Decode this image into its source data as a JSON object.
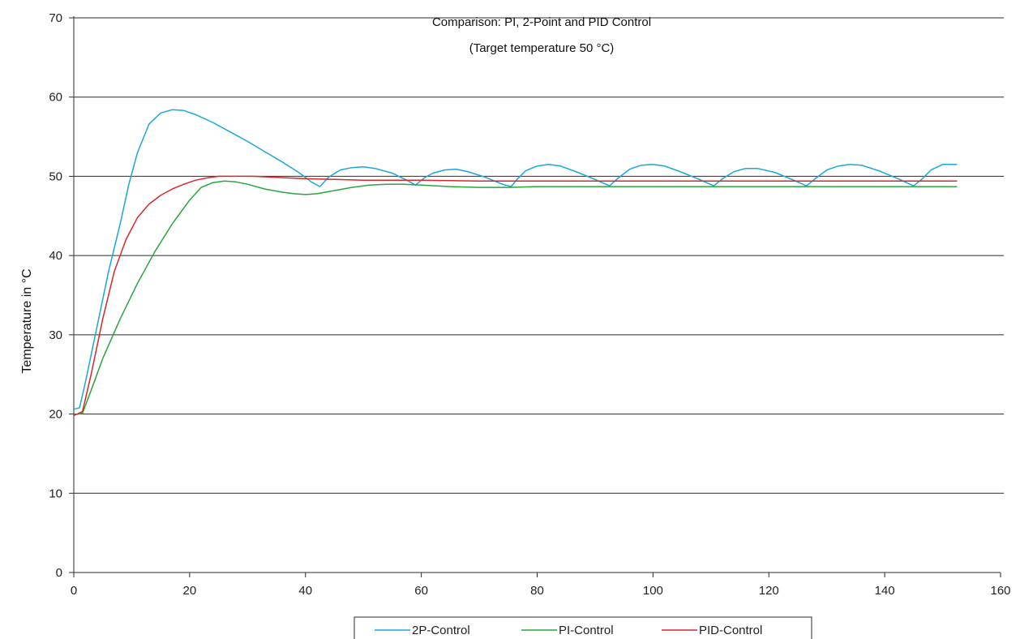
{
  "chart_data": {
    "type": "line",
    "title": "Comparison: PI, 2-Point and PID Control",
    "subtitle": "(Target temperature 50 °C)",
    "xlabel": "",
    "ylabel": "Temperature in °C",
    "xlim": [
      0,
      160
    ],
    "ylim": [
      0,
      70
    ],
    "xticks": [
      0,
      20,
      40,
      60,
      80,
      100,
      120,
      140,
      160
    ],
    "yticks": [
      0,
      10,
      20,
      30,
      40,
      50,
      60,
      70
    ],
    "grid": "horizontal",
    "legend_position": "bottom",
    "series": [
      {
        "name": "2P-Control",
        "color": "#1aa7d8",
        "points": [
          [
            0,
            20.6
          ],
          [
            1,
            20.8
          ],
          [
            2,
            24
          ],
          [
            4,
            31
          ],
          [
            6,
            38
          ],
          [
            8,
            44
          ],
          [
            9.5,
            49
          ],
          [
            11,
            53
          ],
          [
            13,
            56.6
          ],
          [
            15,
            58
          ],
          [
            17,
            58.4
          ],
          [
            19,
            58.3
          ],
          [
            21,
            57.8
          ],
          [
            24,
            56.8
          ],
          [
            27,
            55.6
          ],
          [
            30,
            54.4
          ],
          [
            33,
            53.1
          ],
          [
            36,
            51.8
          ],
          [
            39,
            50.4
          ],
          [
            41,
            49.3
          ],
          [
            42.5,
            48.7
          ],
          [
            44,
            49.9
          ],
          [
            46,
            50.8
          ],
          [
            48,
            51.1
          ],
          [
            50,
            51.2
          ],
          [
            52,
            51
          ],
          [
            55,
            50.4
          ],
          [
            57.5,
            49.5
          ],
          [
            59,
            48.9
          ],
          [
            60.5,
            49.8
          ],
          [
            62,
            50.4
          ],
          [
            64,
            50.8
          ],
          [
            66,
            50.9
          ],
          [
            68,
            50.6
          ],
          [
            71,
            49.9
          ],
          [
            74,
            49
          ],
          [
            75.5,
            48.7
          ],
          [
            76.5,
            49.6
          ],
          [
            78,
            50.7
          ],
          [
            80,
            51.3
          ],
          [
            82,
            51.5
          ],
          [
            84,
            51.3
          ],
          [
            87,
            50.5
          ],
          [
            90,
            49.6
          ],
          [
            92.5,
            48.8
          ],
          [
            94,
            49.8
          ],
          [
            96,
            50.9
          ],
          [
            98,
            51.4
          ],
          [
            100,
            51.5
          ],
          [
            102,
            51.3
          ],
          [
            105,
            50.5
          ],
          [
            108,
            49.6
          ],
          [
            110.5,
            48.8
          ],
          [
            112,
            49.7
          ],
          [
            114,
            50.6
          ],
          [
            116,
            51
          ],
          [
            118,
            51
          ],
          [
            121,
            50.5
          ],
          [
            124,
            49.6
          ],
          [
            126.5,
            48.8
          ],
          [
            128,
            49.7
          ],
          [
            130,
            50.8
          ],
          [
            132,
            51.3
          ],
          [
            134,
            51.5
          ],
          [
            136,
            51.4
          ],
          [
            139,
            50.7
          ],
          [
            142,
            49.8
          ],
          [
            145,
            48.8
          ],
          [
            146.5,
            49.7
          ],
          [
            148,
            50.8
          ],
          [
            150,
            51.5
          ],
          [
            152.5,
            51.5
          ]
        ]
      },
      {
        "name": "PI-Control",
        "color": "#2ca43c",
        "points": [
          [
            0,
            19.9
          ],
          [
            1.5,
            20.1
          ],
          [
            3,
            23
          ],
          [
            5,
            27
          ],
          [
            8,
            32
          ],
          [
            11,
            36.5
          ],
          [
            14,
            40.5
          ],
          [
            17,
            44
          ],
          [
            20,
            47
          ],
          [
            22,
            48.6
          ],
          [
            24,
            49.2
          ],
          [
            26,
            49.4
          ],
          [
            28,
            49.3
          ],
          [
            30,
            49
          ],
          [
            33,
            48.4
          ],
          [
            36,
            48
          ],
          [
            38,
            47.8
          ],
          [
            40,
            47.7
          ],
          [
            42,
            47.8
          ],
          [
            45,
            48.2
          ],
          [
            48,
            48.6
          ],
          [
            51,
            48.9
          ],
          [
            54,
            49
          ],
          [
            57,
            49
          ],
          [
            60,
            48.9
          ],
          [
            65,
            48.7
          ],
          [
            70,
            48.6
          ],
          [
            75,
            48.6
          ],
          [
            80,
            48.7
          ],
          [
            90,
            48.7
          ],
          [
            100,
            48.7
          ],
          [
            110,
            48.7
          ],
          [
            120,
            48.7
          ],
          [
            130,
            48.7
          ],
          [
            140,
            48.7
          ],
          [
            152.5,
            48.7
          ]
        ]
      },
      {
        "name": "PID-Control",
        "color": "#d9262a",
        "points": [
          [
            0,
            19.8
          ],
          [
            1.5,
            20.3
          ],
          [
            3,
            25
          ],
          [
            5,
            32
          ],
          [
            7,
            38
          ],
          [
            9,
            42
          ],
          [
            11,
            44.8
          ],
          [
            13,
            46.5
          ],
          [
            15,
            47.6
          ],
          [
            17,
            48.4
          ],
          [
            19,
            49
          ],
          [
            21,
            49.5
          ],
          [
            23,
            49.8
          ],
          [
            25,
            50
          ],
          [
            28,
            50
          ],
          [
            31,
            50
          ],
          [
            34,
            49.9
          ],
          [
            37,
            49.8
          ],
          [
            40,
            49.7
          ],
          [
            45,
            49.6
          ],
          [
            50,
            49.5
          ],
          [
            60,
            49.5
          ],
          [
            70,
            49.4
          ],
          [
            80,
            49.4
          ],
          [
            100,
            49.4
          ],
          [
            120,
            49.4
          ],
          [
            140,
            49.4
          ],
          [
            152.5,
            49.4
          ]
        ]
      }
    ]
  }
}
